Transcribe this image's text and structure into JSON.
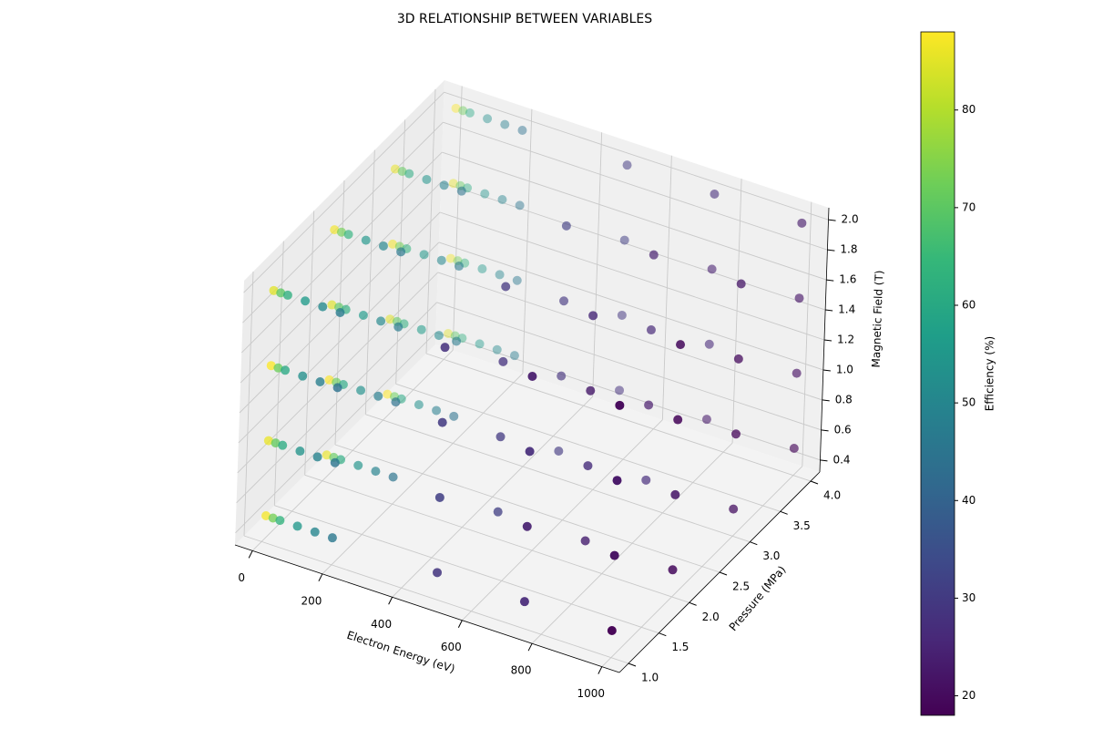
{
  "chart_data": {
    "type": "scatter3d",
    "title": "3D RELATIONSHIP BETWEEN VARIABLES",
    "x_label": "Electron Energy (eV)",
    "y_label": "Pressure (MPa)",
    "z_label": "Magnetic Field (T)",
    "colorbar_label": "Efficiency (%)",
    "colormap": "viridis",
    "x": [
      10,
      30,
      50,
      100,
      150,
      200,
      500,
      750,
      1000,
      10,
      30,
      50,
      100,
      150,
      200,
      500,
      750,
      1000,
      10,
      30,
      50,
      100,
      150,
      200,
      500,
      750,
      1000,
      10,
      30,
      50,
      100,
      150,
      200,
      500,
      750,
      1000,
      10,
      30,
      50,
      100,
      150,
      200,
      500,
      750,
      1000,
      10,
      30,
      50,
      100,
      150,
      200,
      500,
      750,
      1000,
      10,
      30,
      50,
      100,
      150,
      200,
      500,
      750,
      1000,
      10,
      30,
      50,
      100,
      150,
      200,
      500,
      750,
      1000,
      10,
      30,
      50,
      100,
      150,
      200,
      500,
      750,
      1000,
      10,
      30,
      50,
      100,
      150,
      200,
      500,
      750,
      1000,
      10,
      30,
      50,
      100,
      150,
      200,
      500,
      750,
      1000,
      10,
      30,
      50,
      100,
      150,
      200,
      500,
      750,
      1000,
      10,
      30,
      50,
      100,
      150,
      200,
      500,
      750,
      1000,
      10,
      30,
      50,
      100,
      150,
      200,
      500,
      750,
      1000,
      10,
      30,
      50,
      100,
      150,
      200,
      500,
      750,
      1000,
      10,
      30,
      50,
      100,
      150,
      200,
      500,
      750,
      1000
    ],
    "y": [
      1,
      1,
      1,
      1,
      1,
      1,
      1,
      1,
      1,
      1,
      1,
      1,
      1,
      1,
      1,
      1,
      1,
      1,
      1,
      1,
      1,
      1,
      1,
      1,
      1,
      1,
      1,
      1,
      1,
      1,
      1,
      1,
      1,
      1,
      1,
      1,
      2,
      2,
      2,
      2,
      2,
      2,
      2,
      2,
      2,
      2,
      2,
      2,
      2,
      2,
      2,
      2,
      2,
      2,
      2,
      2,
      2,
      2,
      2,
      2,
      2,
      2,
      2,
      2,
      2,
      2,
      2,
      2,
      2,
      2,
      2,
      2,
      3,
      3,
      3,
      3,
      3,
      3,
      3,
      3,
      3,
      3,
      3,
      3,
      3,
      3,
      3,
      3,
      3,
      3,
      3,
      3,
      3,
      3,
      3,
      3,
      3,
      3,
      3,
      3,
      3,
      3,
      3,
      3,
      3,
      3,
      3,
      3,
      4,
      4,
      4,
      4,
      4,
      4,
      4,
      4,
      4,
      4,
      4,
      4,
      4,
      4,
      4,
      4,
      4,
      4,
      4,
      4,
      4,
      4,
      4,
      4,
      4,
      4,
      4,
      4,
      4,
      4,
      4,
      4,
      4,
      4,
      4,
      4
    ],
    "z": [
      0.5,
      0.5,
      0.5,
      0.5,
      0.5,
      0.5,
      0.5,
      0.5,
      0.5,
      1,
      1,
      1,
      1,
      1,
      1,
      1,
      1,
      1,
      1.5,
      1.5,
      1.5,
      1.5,
      1.5,
      1.5,
      1.5,
      1.5,
      1.5,
      2,
      2,
      2,
      2,
      2,
      2,
      2,
      2,
      2,
      0.5,
      0.5,
      0.5,
      0.5,
      0.5,
      0.5,
      0.5,
      0.5,
      0.5,
      1,
      1,
      1,
      1,
      1,
      1,
      1,
      1,
      1,
      1.5,
      1.5,
      1.5,
      1.5,
      1.5,
      1.5,
      1.5,
      1.5,
      1.5,
      2,
      2,
      2,
      2,
      2,
      2,
      2,
      2,
      2,
      0.5,
      0.5,
      0.5,
      0.5,
      0.5,
      0.5,
      0.5,
      0.5,
      0.5,
      1,
      1,
      1,
      1,
      1,
      1,
      1,
      1,
      1,
      1.5,
      1.5,
      1.5,
      1.5,
      1.5,
      1.5,
      1.5,
      1.5,
      1.5,
      2,
      2,
      2,
      2,
      2,
      2,
      2,
      2,
      2,
      0.5,
      0.5,
      0.5,
      0.5,
      0.5,
      0.5,
      0.5,
      0.5,
      0.5,
      1,
      1,
      1,
      1,
      1,
      1,
      1,
      1,
      1,
      1.5,
      1.5,
      1.5,
      1.5,
      1.5,
      1.5,
      1.5,
      1.5,
      1.5,
      2,
      2,
      2,
      2,
      2,
      2,
      2,
      2,
      2
    ],
    "values": [
      87,
      73,
      63,
      55,
      50,
      46,
      29,
      26,
      18,
      86,
      71,
      61,
      54,
      49,
      45,
      31,
      24,
      21,
      88,
      72,
      60,
      53,
      48,
      44,
      30,
      27,
      22,
      85,
      70,
      62,
      56,
      51,
      47,
      28,
      23,
      19,
      86,
      71,
      61,
      54,
      49,
      45,
      31,
      24,
      20,
      88,
      72,
      60,
      53,
      48,
      44,
      30,
      27,
      22,
      85,
      70,
      62,
      56,
      51,
      47,
      28,
      23,
      19,
      87,
      73,
      63,
      55,
      50,
      46,
      29,
      26,
      20,
      88,
      72,
      60,
      53,
      48,
      44,
      30,
      27,
      21,
      85,
      70,
      62,
      56,
      51,
      47,
      28,
      23,
      19,
      87,
      73,
      63,
      55,
      50,
      46,
      29,
      26,
      20,
      86,
      71,
      61,
      54,
      49,
      45,
      31,
      24,
      22,
      85,
      70,
      62,
      56,
      51,
      47,
      28,
      23,
      19,
      87,
      73,
      63,
      55,
      50,
      46,
      29,
      26,
      21,
      86,
      71,
      61,
      54,
      49,
      45,
      31,
      24,
      22,
      88,
      72,
      60,
      53,
      48,
      44,
      30,
      27,
      23
    ],
    "xlim": [
      -50,
      1050
    ],
    "xticks": [
      0,
      200,
      400,
      600,
      800,
      1000
    ],
    "ylim": [
      0.85,
      4.15
    ],
    "yticks": [
      {
        "value": 1,
        "label": "1.0"
      },
      1.5,
      {
        "value": 2,
        "label": "2.0"
      },
      2.5,
      {
        "value": 3,
        "label": "3.0"
      },
      3.5,
      {
        "value": 4,
        "label": "4.0"
      }
    ],
    "zlim": [
      0.32,
      2.08
    ],
    "zticks": [
      0.4,
      0.6,
      0.8,
      {
        "value": 1,
        "label": "1.0"
      },
      1.2,
      1.4,
      1.6,
      1.8,
      {
        "value": 2,
        "label": "2.0"
      }
    ],
    "colorbar_lim": [
      18,
      88
    ],
    "colorbar_ticks": [
      20,
      30,
      40,
      50,
      60,
      70,
      80
    ],
    "grid": true
  }
}
